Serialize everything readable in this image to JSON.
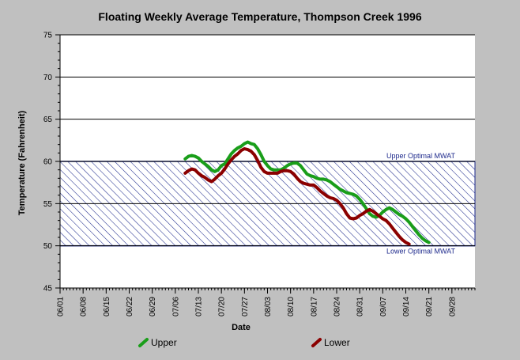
{
  "chart_data": {
    "type": "line",
    "title": "Floating Weekly Average Temperature, Thompson Creek 1996",
    "xlabel": "Date",
    "ylabel": "Temperature (Fahrenheit)",
    "ylim": [
      45,
      75
    ],
    "yticks": [
      45,
      50,
      55,
      60,
      65,
      70,
      75
    ],
    "x_range": [
      "1996-06-01",
      "1996-10-05"
    ],
    "xtick_labels": [
      {
        "date": "1996-06-01",
        "label": "06/01"
      },
      {
        "date": "1996-06-08",
        "label": "06/08"
      },
      {
        "date": "1996-06-15",
        "label": "06/15"
      },
      {
        "date": "1996-06-22",
        "label": "06/22"
      },
      {
        "date": "1996-06-29",
        "label": "06/29"
      },
      {
        "date": "1996-07-06",
        "label": "07/06"
      },
      {
        "date": "1996-07-13",
        "label": "07/13"
      },
      {
        "date": "1996-07-20",
        "label": "07/20"
      },
      {
        "date": "1996-07-27",
        "label": "07/27"
      },
      {
        "date": "1996-08-03",
        "label": "08/03"
      },
      {
        "date": "1996-08-10",
        "label": "08/10"
      },
      {
        "date": "1996-08-17",
        "label": "08/17"
      },
      {
        "date": "1996-08-24",
        "label": "08/24"
      },
      {
        "date": "1996-08-31",
        "label": "08/31"
      },
      {
        "date": "1996-09-07",
        "label": "09/07"
      },
      {
        "date": "1996-09-14",
        "label": "09/14"
      },
      {
        "date": "1996-09-21",
        "label": "09/21"
      },
      {
        "date": "1996-09-28",
        "label": "09/28"
      }
    ],
    "grid": "horizontal at major ticks",
    "optimal_band": {
      "upper": 60,
      "lower": 50,
      "upper_label": "Upper Optimal MWAT",
      "lower_label": "Lower Optimal MWAT",
      "color": "#1e2a8c"
    },
    "legend_position": "bottom",
    "series": [
      {
        "name": "Upper",
        "color": "#1a9e1a",
        "points": [
          [
            "1996-07-09",
            60.3
          ],
          [
            "1996-07-10",
            60.6
          ],
          [
            "1996-07-11",
            60.7
          ],
          [
            "1996-07-12",
            60.6
          ],
          [
            "1996-07-13",
            60.4
          ],
          [
            "1996-07-14",
            60.0
          ],
          [
            "1996-07-15",
            59.7
          ],
          [
            "1996-07-16",
            59.4
          ],
          [
            "1996-07-17",
            59.0
          ],
          [
            "1996-07-18",
            58.8
          ],
          [
            "1996-07-19",
            59.0
          ],
          [
            "1996-07-20",
            59.5
          ],
          [
            "1996-07-21",
            59.7
          ],
          [
            "1996-07-22",
            60.3
          ],
          [
            "1996-07-23",
            60.9
          ],
          [
            "1996-07-24",
            61.3
          ],
          [
            "1996-07-25",
            61.6
          ],
          [
            "1996-07-26",
            61.8
          ],
          [
            "1996-07-27",
            62.1
          ],
          [
            "1996-07-28",
            62.3
          ],
          [
            "1996-07-29",
            62.1
          ],
          [
            "1996-07-30",
            62.0
          ],
          [
            "1996-07-31",
            61.5
          ],
          [
            "1996-08-01",
            60.8
          ],
          [
            "1996-08-02",
            60.0
          ],
          [
            "1996-08-03",
            59.5
          ],
          [
            "1996-08-04",
            59.1
          ],
          [
            "1996-08-05",
            59.0
          ],
          [
            "1996-08-06",
            59.0
          ],
          [
            "1996-08-07",
            59.0
          ],
          [
            "1996-08-08",
            59.2
          ],
          [
            "1996-08-09",
            59.5
          ],
          [
            "1996-08-10",
            59.7
          ],
          [
            "1996-08-11",
            59.8
          ],
          [
            "1996-08-12",
            59.8
          ],
          [
            "1996-08-13",
            59.5
          ],
          [
            "1996-08-14",
            59.0
          ],
          [
            "1996-08-15",
            58.5
          ],
          [
            "1996-08-16",
            58.3
          ],
          [
            "1996-08-17",
            58.2
          ],
          [
            "1996-08-18",
            58.0
          ],
          [
            "1996-08-19",
            57.9
          ],
          [
            "1996-08-20",
            57.9
          ],
          [
            "1996-08-21",
            57.8
          ],
          [
            "1996-08-22",
            57.6
          ],
          [
            "1996-08-23",
            57.3
          ],
          [
            "1996-08-24",
            57.0
          ],
          [
            "1996-08-25",
            56.7
          ],
          [
            "1996-08-26",
            56.5
          ],
          [
            "1996-08-27",
            56.3
          ],
          [
            "1996-08-28",
            56.2
          ],
          [
            "1996-08-29",
            56.1
          ],
          [
            "1996-08-30",
            55.9
          ],
          [
            "1996-08-31",
            55.5
          ],
          [
            "1996-09-01",
            55.0
          ],
          [
            "1996-09-02",
            54.4
          ],
          [
            "1996-09-03",
            53.8
          ],
          [
            "1996-09-04",
            53.5
          ],
          [
            "1996-09-05",
            53.4
          ],
          [
            "1996-09-06",
            53.6
          ],
          [
            "1996-09-07",
            54.0
          ],
          [
            "1996-09-08",
            54.3
          ],
          [
            "1996-09-09",
            54.5
          ],
          [
            "1996-09-10",
            54.3
          ],
          [
            "1996-09-11",
            54.0
          ],
          [
            "1996-09-12",
            53.7
          ],
          [
            "1996-09-13",
            53.5
          ],
          [
            "1996-09-14",
            53.2
          ],
          [
            "1996-09-15",
            52.8
          ],
          [
            "1996-09-16",
            52.3
          ],
          [
            "1996-09-17",
            51.8
          ],
          [
            "1996-09-18",
            51.3
          ],
          [
            "1996-09-19",
            50.9
          ],
          [
            "1996-09-20",
            50.6
          ],
          [
            "1996-09-21",
            50.4
          ]
        ]
      },
      {
        "name": "Lower",
        "color": "#8b0000",
        "points": [
          [
            "1996-07-09",
            58.6
          ],
          [
            "1996-07-10",
            58.9
          ],
          [
            "1996-07-11",
            59.1
          ],
          [
            "1996-07-12",
            59.0
          ],
          [
            "1996-07-13",
            58.6
          ],
          [
            "1996-07-14",
            58.3
          ],
          [
            "1996-07-15",
            58.1
          ],
          [
            "1996-07-16",
            57.8
          ],
          [
            "1996-07-17",
            57.6
          ],
          [
            "1996-07-18",
            57.9
          ],
          [
            "1996-07-19",
            58.3
          ],
          [
            "1996-07-20",
            58.6
          ],
          [
            "1996-07-21",
            59.1
          ],
          [
            "1996-07-22",
            59.7
          ],
          [
            "1996-07-23",
            60.2
          ],
          [
            "1996-07-24",
            60.6
          ],
          [
            "1996-07-25",
            60.9
          ],
          [
            "1996-07-26",
            61.3
          ],
          [
            "1996-07-27",
            61.5
          ],
          [
            "1996-07-28",
            61.4
          ],
          [
            "1996-07-29",
            61.2
          ],
          [
            "1996-07-30",
            60.8
          ],
          [
            "1996-07-31",
            60.1
          ],
          [
            "1996-08-01",
            59.3
          ],
          [
            "1996-08-02",
            58.8
          ],
          [
            "1996-08-03",
            58.6
          ],
          [
            "1996-08-04",
            58.6
          ],
          [
            "1996-08-05",
            58.6
          ],
          [
            "1996-08-06",
            58.6
          ],
          [
            "1996-08-07",
            58.8
          ],
          [
            "1996-08-08",
            58.9
          ],
          [
            "1996-08-09",
            58.9
          ],
          [
            "1996-08-10",
            58.8
          ],
          [
            "1996-08-11",
            58.5
          ],
          [
            "1996-08-12",
            58.0
          ],
          [
            "1996-08-13",
            57.6
          ],
          [
            "1996-08-14",
            57.4
          ],
          [
            "1996-08-15",
            57.3
          ],
          [
            "1996-08-16",
            57.2
          ],
          [
            "1996-08-17",
            57.2
          ],
          [
            "1996-08-18",
            56.9
          ],
          [
            "1996-08-19",
            56.5
          ],
          [
            "1996-08-20",
            56.2
          ],
          [
            "1996-08-21",
            55.9
          ],
          [
            "1996-08-22",
            55.7
          ],
          [
            "1996-08-23",
            55.6
          ],
          [
            "1996-08-24",
            55.4
          ],
          [
            "1996-08-25",
            55.0
          ],
          [
            "1996-08-26",
            54.5
          ],
          [
            "1996-08-27",
            53.8
          ],
          [
            "1996-08-28",
            53.3
          ],
          [
            "1996-08-29",
            53.2
          ],
          [
            "1996-08-30",
            53.3
          ],
          [
            "1996-08-31",
            53.6
          ],
          [
            "1996-09-01",
            53.8
          ],
          [
            "1996-09-02",
            54.1
          ],
          [
            "1996-09-03",
            54.3
          ],
          [
            "1996-09-04",
            54.1
          ],
          [
            "1996-09-05",
            53.8
          ],
          [
            "1996-09-06",
            53.5
          ],
          [
            "1996-09-07",
            53.2
          ],
          [
            "1996-09-08",
            53.0
          ],
          [
            "1996-09-09",
            52.6
          ],
          [
            "1996-09-10",
            52.1
          ],
          [
            "1996-09-11",
            51.6
          ],
          [
            "1996-09-12",
            51.1
          ],
          [
            "1996-09-13",
            50.7
          ],
          [
            "1996-09-14",
            50.4
          ],
          [
            "1996-09-15",
            50.2
          ]
        ]
      }
    ]
  }
}
